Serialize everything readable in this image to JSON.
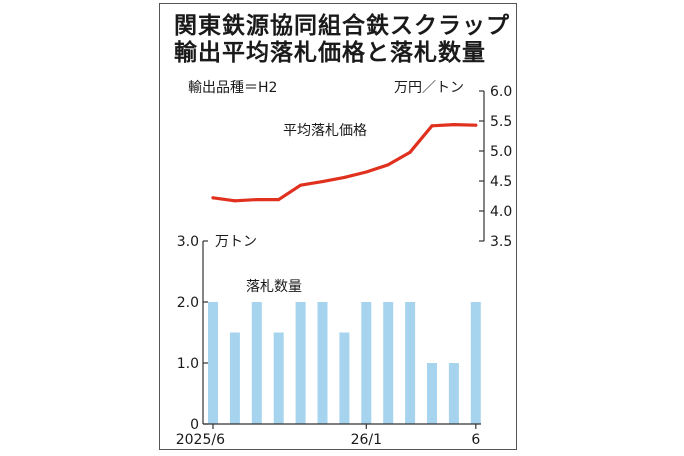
{
  "chart_data": [
    {
      "type": "line",
      "title": "関東鉄源協同組合鉄スクラップ輸出平均落札価格と落札数量",
      "title_line1": "関東鉄源協同組合鉄スクラップ",
      "title_line2": "輸出平均落札価格と落札数量",
      "subtitle": "輸出品種＝H2",
      "ylabel": "万円／トン",
      "series": [
        {
          "name": "平均落札価格",
          "color": "#e0301e",
          "values": [
            4.22,
            4.17,
            4.19,
            4.19,
            4.43,
            4.49,
            4.56,
            4.65,
            4.77,
            4.98,
            5.42,
            5.44,
            5.43
          ]
        }
      ],
      "ylim": [
        3.5,
        6.0
      ],
      "yticks": [
        "3.5",
        "4.0",
        "4.5",
        "5.0",
        "5.5",
        "6.0"
      ],
      "y_axis_side": "right"
    },
    {
      "type": "bar",
      "series": [
        {
          "name": "落札数量",
          "color": "#a6d4ef",
          "values": [
            2.0,
            1.5,
            2.0,
            1.5,
            2.0,
            2.0,
            1.5,
            2.0,
            2.0,
            2.0,
            1.0,
            1.0,
            2.0
          ]
        }
      ],
      "ylabel": "万トン",
      "ylim": [
        0,
        3.0
      ],
      "yticks": [
        "0",
        "1.0",
        "2.0",
        "3.0"
      ],
      "y_axis_side": "left",
      "xticks": [
        "2025/6",
        "26/1",
        "6"
      ]
    }
  ]
}
